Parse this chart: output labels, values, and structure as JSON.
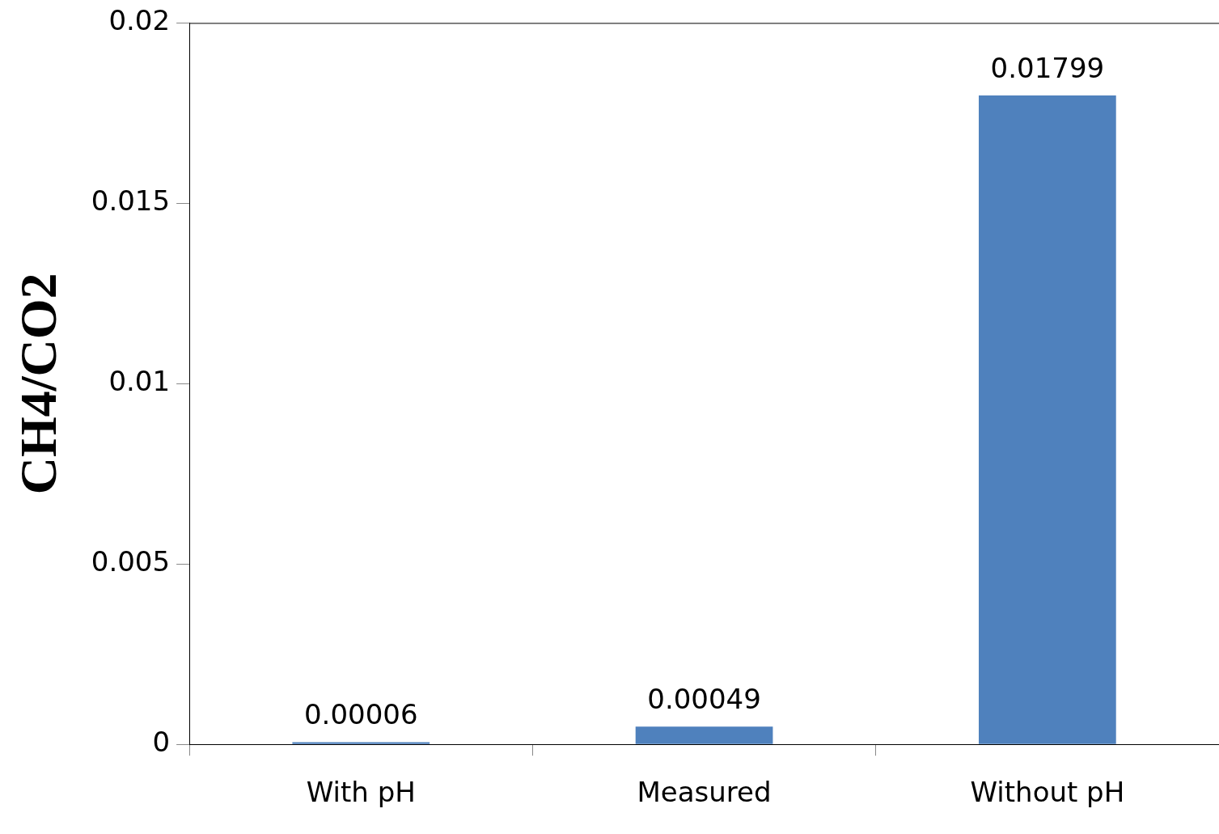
{
  "chart_data": {
    "type": "bar",
    "ylabel": "CH4/CO2",
    "categories": [
      "With pH",
      "Measured",
      "Without pH"
    ],
    "values": [
      6e-05,
      0.00049,
      0.01799
    ],
    "value_labels": [
      "0.00006",
      "0.00049",
      "0.01799"
    ],
    "color": "#4f81bd",
    "ylim": [
      0,
      0.02
    ],
    "yticks": [
      0,
      0.005,
      0.01,
      0.015,
      0.02
    ],
    "grid": false,
    "legend": false
  }
}
